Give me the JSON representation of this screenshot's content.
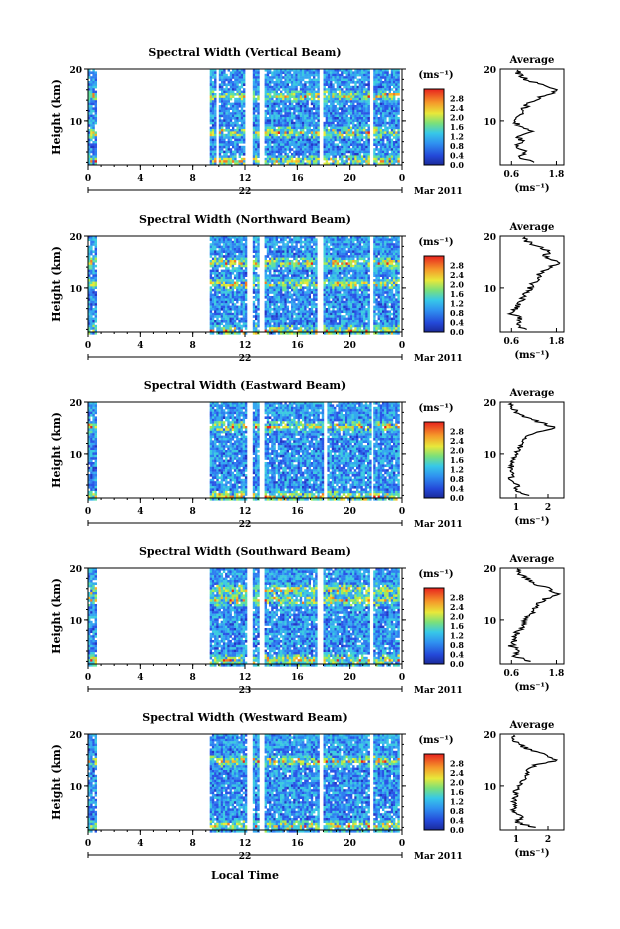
{
  "figure": {
    "x_axis_label": "Local Time",
    "date_label": "Mar 2011",
    "colorbar_unit": "(ms⁻¹)",
    "profile_title": "Average",
    "profile_unit": "(ms⁻¹)"
  },
  "chart_data": [
    {
      "type": "heatmap",
      "title": "Spectral Width (Vertical Beam)",
      "ylabel": "Height (km)",
      "xlabel": "Local Time",
      "x_ticks": [
        "0",
        "4",
        "8",
        "12",
        "16",
        "20",
        "0"
      ],
      "day_label": "22",
      "date_label": "Mar 2011",
      "xlim": [
        0,
        24
      ],
      "ylim": [
        1.5,
        20
      ],
      "y_ticks": [
        "20",
        "10"
      ],
      "colorbar": {
        "unit": "(ms⁻¹)",
        "range": [
          0.0,
          3.2
        ],
        "ticks": [
          "2.8",
          "2.4",
          "2.0",
          "1.6",
          "1.2",
          "0.8",
          "0.4",
          "0.0"
        ]
      },
      "data_coverage_hours": [
        [
          0.0,
          0.6
        ],
        [
          9.3,
          9.8
        ],
        [
          10.0,
          11.9
        ],
        [
          12.6,
          13.0
        ],
        [
          13.5,
          17.7
        ],
        [
          18.0,
          21.5
        ],
        [
          21.8,
          23.8
        ]
      ],
      "enhanced_width_heights_km": [
        2.5,
        8.0,
        15.0
      ],
      "average_profile": {
        "title": "Average",
        "xlabel": "(ms⁻¹)",
        "x_ticks": [
          "0.6",
          "1.8"
        ],
        "xlim": [
          0.3,
          2.0
        ],
        "heights_km": [
          2,
          3,
          4,
          5,
          6,
          7,
          8,
          9,
          10,
          11,
          12,
          13,
          14,
          15,
          16,
          17,
          18,
          19,
          20
        ],
        "values": [
          1.2,
          0.8,
          1.0,
          0.7,
          0.9,
          0.75,
          1.1,
          0.8,
          0.7,
          0.8,
          0.9,
          1.0,
          1.2,
          1.5,
          1.9,
          1.4,
          1.0,
          0.8,
          0.7
        ]
      }
    },
    {
      "type": "heatmap",
      "title": "Spectral Width (Northward Beam)",
      "ylabel": "Height (km)",
      "xlabel": "Local Time",
      "x_ticks": [
        "0",
        "4",
        "8",
        "12",
        "16",
        "20",
        "0"
      ],
      "day_label": "22",
      "date_label": "Mar 2011",
      "xlim": [
        0,
        24
      ],
      "ylim": [
        1.5,
        20
      ],
      "y_ticks": [
        "20",
        "10"
      ],
      "colorbar": {
        "unit": "(ms⁻¹)",
        "range": [
          0.0,
          3.2
        ],
        "ticks": [
          "2.8",
          "2.4",
          "2.0",
          "1.6",
          "1.2",
          "0.8",
          "0.4",
          "0.0"
        ]
      },
      "data_coverage_hours": [
        [
          0.0,
          0.6
        ],
        [
          9.3,
          12.0
        ],
        [
          12.6,
          13.0
        ],
        [
          13.5,
          17.5
        ],
        [
          18.0,
          21.5
        ],
        [
          21.8,
          23.8
        ]
      ],
      "enhanced_width_heights_km": [
        2.0,
        11.0,
        15.0
      ],
      "average_profile": {
        "title": "Average",
        "xlabel": "(ms⁻¹)",
        "x_ticks": [
          "0.6",
          "1.8"
        ],
        "xlim": [
          0.3,
          2.0
        ],
        "heights_km": [
          2,
          3,
          4,
          5,
          6,
          7,
          8,
          9,
          10,
          11,
          12,
          13,
          14,
          15,
          16,
          17,
          18,
          19,
          20
        ],
        "values": [
          1.0,
          0.7,
          0.9,
          0.6,
          0.7,
          0.8,
          0.9,
          1.0,
          1.1,
          1.2,
          1.3,
          1.4,
          1.6,
          1.9,
          1.5,
          1.6,
          1.3,
          1.0,
          0.9
        ]
      }
    },
    {
      "type": "heatmap",
      "title": "Spectral Width (Eastward Beam)",
      "ylabel": "Height (km)",
      "xlabel": "Local Time",
      "x_ticks": [
        "0",
        "4",
        "8",
        "12",
        "16",
        "20",
        "0"
      ],
      "day_label": "22",
      "date_label": "Mar 2011",
      "xlim": [
        0,
        24
      ],
      "ylim": [
        1.5,
        20
      ],
      "y_ticks": [
        "20",
        "10"
      ],
      "colorbar": {
        "unit": "(ms⁻¹)",
        "range": [
          0.0,
          3.2
        ],
        "ticks": [
          "2.8",
          "2.4",
          "2.0",
          "1.6",
          "1.2",
          "0.8",
          "0.4",
          "0.0"
        ]
      },
      "data_coverage_hours": [
        [
          0.0,
          0.6
        ],
        [
          9.3,
          12.0
        ],
        [
          12.6,
          13.0
        ],
        [
          13.5,
          18.0
        ],
        [
          18.3,
          21.5
        ],
        [
          21.8,
          23.8
        ]
      ],
      "enhanced_width_heights_km": [
        2.0,
        15.5
      ],
      "average_profile": {
        "title": "Average",
        "xlabel": "(ms⁻¹)",
        "x_ticks": [
          "1",
          "2"
        ],
        "xlim": [
          0.5,
          2.5
        ],
        "heights_km": [
          2,
          3,
          4,
          5,
          6,
          7,
          8,
          9,
          10,
          11,
          12,
          13,
          14,
          15,
          16,
          17,
          18,
          19,
          20
        ],
        "values": [
          1.4,
          0.9,
          1.1,
          0.8,
          0.9,
          0.8,
          0.9,
          0.9,
          1.0,
          1.1,
          1.2,
          1.3,
          1.5,
          2.2,
          1.8,
          1.3,
          1.0,
          0.9,
          0.8
        ]
      }
    },
    {
      "type": "heatmap",
      "title": "Spectral Width (Southward Beam)",
      "ylabel": "Height (km)",
      "xlabel": "Local Time",
      "x_ticks": [
        "0",
        "4",
        "8",
        "12",
        "16",
        "20",
        "0"
      ],
      "day_label": "23",
      "date_label": "Mar 2011",
      "xlim": [
        0,
        24
      ],
      "ylim": [
        1.5,
        20
      ],
      "y_ticks": [
        "20",
        "10"
      ],
      "colorbar": {
        "unit": "(ms⁻¹)",
        "range": [
          0.0,
          3.2
        ],
        "ticks": [
          "2.8",
          "2.4",
          "2.0",
          "1.6",
          "1.2",
          "0.8",
          "0.4",
          "0.0"
        ]
      },
      "data_coverage_hours": [
        [
          0.0,
          0.6
        ],
        [
          9.3,
          12.0
        ],
        [
          12.6,
          13.0
        ],
        [
          13.5,
          17.5
        ],
        [
          18.0,
          21.5
        ],
        [
          21.8,
          23.8
        ]
      ],
      "enhanced_width_heights_km": [
        2.5,
        14.0,
        16.0
      ],
      "average_profile": {
        "title": "Average",
        "xlabel": "(ms⁻¹)",
        "x_ticks": [
          "0.6",
          "1.8"
        ],
        "xlim": [
          0.3,
          2.0
        ],
        "heights_km": [
          2,
          3,
          4,
          5,
          6,
          7,
          8,
          9,
          10,
          11,
          12,
          13,
          14,
          15,
          16,
          17,
          18,
          19,
          20
        ],
        "values": [
          1.1,
          0.7,
          0.8,
          0.6,
          0.7,
          0.7,
          0.8,
          0.9,
          1.0,
          1.1,
          1.2,
          1.3,
          1.5,
          1.8,
          1.6,
          1.2,
          1.0,
          0.8,
          0.7
        ]
      }
    },
    {
      "type": "heatmap",
      "title": "Spectral Width (Westward Beam)",
      "ylabel": "Height (km)",
      "xlabel": "Local Time",
      "x_ticks": [
        "0",
        "4",
        "8",
        "12",
        "16",
        "20",
        "0"
      ],
      "day_label": "22",
      "date_label": "Mar 2011",
      "xlim": [
        0,
        24
      ],
      "ylim": [
        1.5,
        20
      ],
      "y_ticks": [
        "20",
        "10"
      ],
      "colorbar": {
        "unit": "(ms⁻¹)",
        "range": [
          0.0,
          3.2
        ],
        "ticks": [
          "2.8",
          "2.4",
          "2.0",
          "1.6",
          "1.2",
          "0.8",
          "0.4",
          "0.0"
        ]
      },
      "data_coverage_hours": [
        [
          0.0,
          0.6
        ],
        [
          9.3,
          12.0
        ],
        [
          12.6,
          13.0
        ],
        [
          13.5,
          17.6
        ],
        [
          18.0,
          21.5
        ],
        [
          21.8,
          23.8
        ]
      ],
      "enhanced_width_heights_km": [
        2.5,
        15.0
      ],
      "average_profile": {
        "title": "Average",
        "xlabel": "(ms⁻¹)",
        "x_ticks": [
          "1",
          "2"
        ],
        "xlim": [
          0.5,
          2.5
        ],
        "heights_km": [
          2,
          3,
          4,
          5,
          6,
          7,
          8,
          9,
          10,
          11,
          12,
          13,
          14,
          15,
          16,
          17,
          18,
          19,
          20
        ],
        "values": [
          1.6,
          1.0,
          1.2,
          0.9,
          1.0,
          0.9,
          1.0,
          1.0,
          1.1,
          1.2,
          1.3,
          1.4,
          1.6,
          2.3,
          1.9,
          1.4,
          1.1,
          0.9,
          0.9
        ]
      }
    }
  ]
}
